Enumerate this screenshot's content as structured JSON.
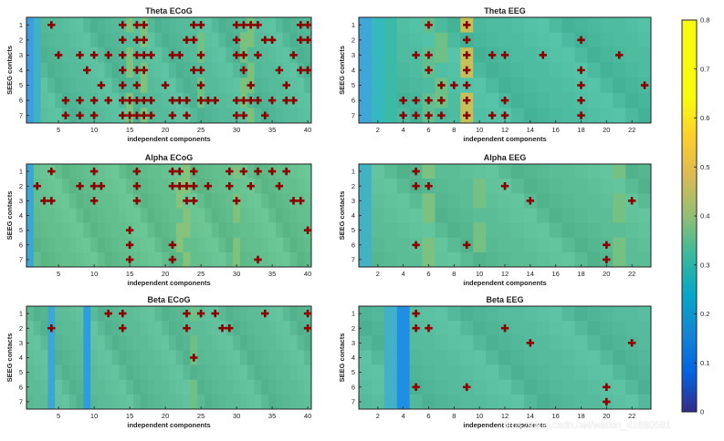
{
  "watermark": "https://blog.csdn.net/weixin_41880581",
  "colorbar": {
    "min": 0,
    "max": 0.8,
    "ticks": [
      "0",
      "0.1",
      "0.2",
      "0.3",
      "0.4",
      "0.5",
      "0.6",
      "0.7",
      "0.8"
    ]
  },
  "chart_data": [
    {
      "type": "heatmap",
      "title": "Theta ECoG",
      "xlabel": "independent components",
      "ylabel": "SEEG contacts",
      "n_cols": 40,
      "n_rows": 7,
      "x_ticks": [
        5,
        10,
        15,
        20,
        25,
        30,
        35,
        40
      ],
      "y_ticks": [
        1,
        2,
        3,
        4,
        5,
        6,
        7
      ],
      "marker": "+",
      "markers": [
        [
          4,
          1
        ],
        [
          14,
          1
        ],
        [
          16,
          1
        ],
        [
          17,
          1
        ],
        [
          24,
          1
        ],
        [
          25,
          1
        ],
        [
          30,
          1
        ],
        [
          31,
          1
        ],
        [
          32,
          1
        ],
        [
          33,
          1
        ],
        [
          39,
          1
        ],
        [
          40,
          1
        ],
        [
          14,
          2
        ],
        [
          16,
          2
        ],
        [
          17,
          2
        ],
        [
          23,
          2
        ],
        [
          24,
          2
        ],
        [
          30,
          2
        ],
        [
          34,
          2
        ],
        [
          35,
          2
        ],
        [
          39,
          2
        ],
        [
          40,
          2
        ],
        [
          5,
          3
        ],
        [
          8,
          3
        ],
        [
          10,
          3
        ],
        [
          12,
          3
        ],
        [
          14,
          3
        ],
        [
          16,
          3
        ],
        [
          17,
          3
        ],
        [
          18,
          3
        ],
        [
          21,
          3
        ],
        [
          22,
          3
        ],
        [
          25,
          3
        ],
        [
          30,
          3
        ],
        [
          31,
          3
        ],
        [
          33,
          3
        ],
        [
          38,
          3
        ],
        [
          9,
          4
        ],
        [
          14,
          4
        ],
        [
          16,
          4
        ],
        [
          17,
          4
        ],
        [
          24,
          4
        ],
        [
          25,
          4
        ],
        [
          31,
          4
        ],
        [
          36,
          4
        ],
        [
          39,
          4
        ],
        [
          40,
          4
        ],
        [
          11,
          5
        ],
        [
          14,
          5
        ],
        [
          16,
          5
        ],
        [
          20,
          5
        ],
        [
          25,
          5
        ],
        [
          32,
          5
        ],
        [
          37,
          5
        ],
        [
          6,
          6
        ],
        [
          8,
          6
        ],
        [
          10,
          6
        ],
        [
          12,
          6
        ],
        [
          14,
          6
        ],
        [
          15,
          6
        ],
        [
          16,
          6
        ],
        [
          17,
          6
        ],
        [
          18,
          6
        ],
        [
          21,
          6
        ],
        [
          22,
          6
        ],
        [
          23,
          6
        ],
        [
          25,
          6
        ],
        [
          26,
          6
        ],
        [
          27,
          6
        ],
        [
          30,
          6
        ],
        [
          31,
          6
        ],
        [
          32,
          6
        ],
        [
          33,
          6
        ],
        [
          35,
          6
        ],
        [
          37,
          6
        ],
        [
          38,
          6
        ],
        [
          6,
          7
        ],
        [
          8,
          7
        ],
        [
          10,
          7
        ],
        [
          14,
          7
        ],
        [
          15,
          7
        ],
        [
          16,
          7
        ],
        [
          17,
          7
        ],
        [
          18,
          7
        ],
        [
          21,
          7
        ],
        [
          23,
          7
        ],
        [
          30,
          7
        ],
        [
          31,
          7
        ],
        [
          34,
          7
        ]
      ]
    },
    {
      "type": "heatmap",
      "title": "Theta EEG",
      "xlabel": "independent components",
      "ylabel": "SEEG contacts",
      "n_cols": 23,
      "n_rows": 7,
      "x_ticks": [
        2,
        4,
        6,
        8,
        10,
        12,
        14,
        16,
        18,
        20,
        22
      ],
      "y_ticks": [
        1,
        2,
        3,
        4,
        5,
        6,
        7
      ],
      "marker": "+",
      "markers": [
        [
          6,
          1
        ],
        [
          9,
          1
        ],
        [
          9,
          2
        ],
        [
          18,
          2
        ],
        [
          5,
          3
        ],
        [
          6,
          3
        ],
        [
          9,
          3
        ],
        [
          11,
          3
        ],
        [
          12,
          3
        ],
        [
          15,
          3
        ],
        [
          21,
          3
        ],
        [
          6,
          4
        ],
        [
          9,
          4
        ],
        [
          18,
          4
        ],
        [
          7,
          5
        ],
        [
          8,
          5
        ],
        [
          9,
          5
        ],
        [
          18,
          5
        ],
        [
          23,
          5
        ],
        [
          4,
          6
        ],
        [
          5,
          6
        ],
        [
          6,
          6
        ],
        [
          7,
          6
        ],
        [
          9,
          6
        ],
        [
          12,
          6
        ],
        [
          18,
          6
        ],
        [
          4,
          7
        ],
        [
          5,
          7
        ],
        [
          6,
          7
        ],
        [
          7,
          7
        ],
        [
          9,
          7
        ],
        [
          11,
          7
        ],
        [
          12,
          7
        ],
        [
          18,
          7
        ]
      ]
    },
    {
      "type": "heatmap",
      "title": "Alpha ECoG",
      "xlabel": "independent components",
      "ylabel": "SEEG contacts",
      "n_cols": 40,
      "n_rows": 7,
      "x_ticks": [
        5,
        10,
        15,
        20,
        25,
        30,
        35,
        40
      ],
      "y_ticks": [
        1,
        2,
        3,
        4,
        5,
        6,
        7
      ],
      "marker": "+",
      "markers": [
        [
          4,
          1
        ],
        [
          10,
          1
        ],
        [
          16,
          1
        ],
        [
          21,
          1
        ],
        [
          22,
          1
        ],
        [
          24,
          1
        ],
        [
          29,
          1
        ],
        [
          31,
          1
        ],
        [
          33,
          1
        ],
        [
          35,
          1
        ],
        [
          37,
          1
        ],
        [
          2,
          2
        ],
        [
          8,
          2
        ],
        [
          10,
          2
        ],
        [
          11,
          2
        ],
        [
          16,
          2
        ],
        [
          21,
          2
        ],
        [
          22,
          2
        ],
        [
          23,
          2
        ],
        [
          24,
          2
        ],
        [
          26,
          2
        ],
        [
          29,
          2
        ],
        [
          32,
          2
        ],
        [
          36,
          2
        ],
        [
          3,
          3
        ],
        [
          4,
          3
        ],
        [
          10,
          3
        ],
        [
          16,
          3
        ],
        [
          23,
          3
        ],
        [
          24,
          3
        ],
        [
          30,
          3
        ],
        [
          38,
          3
        ],
        [
          39,
          3
        ],
        [
          40,
          5
        ],
        [
          15,
          5
        ],
        [
          15,
          6
        ],
        [
          21,
          6
        ],
        [
          15,
          7
        ],
        [
          21,
          7
        ],
        [
          33,
          7
        ]
      ]
    },
    {
      "type": "heatmap",
      "title": "Alpha EEG",
      "xlabel": "independent components",
      "ylabel": "SEEG contacts",
      "n_cols": 23,
      "n_rows": 7,
      "x_ticks": [
        2,
        4,
        6,
        8,
        10,
        12,
        14,
        16,
        18,
        20,
        22
      ],
      "y_ticks": [
        1,
        2,
        3,
        4,
        5,
        6,
        7
      ],
      "marker": "+",
      "markers": [
        [
          5,
          1
        ],
        [
          5,
          2
        ],
        [
          6,
          2
        ],
        [
          12,
          2
        ],
        [
          14,
          3
        ],
        [
          22,
          3
        ],
        [
          5,
          6
        ],
        [
          9,
          6
        ],
        [
          20,
          6
        ],
        [
          20,
          7
        ]
      ]
    },
    {
      "type": "heatmap",
      "title": "Beta ECoG",
      "xlabel": "independent components",
      "ylabel": "SEEG contacts",
      "n_cols": 40,
      "n_rows": 7,
      "x_ticks": [
        5,
        10,
        15,
        20,
        25,
        30,
        35,
        40
      ],
      "y_ticks": [
        1,
        2,
        3,
        4,
        5,
        6,
        7
      ],
      "marker": "+",
      "markers": [
        [
          12,
          1
        ],
        [
          14,
          1
        ],
        [
          23,
          1
        ],
        [
          25,
          1
        ],
        [
          27,
          1
        ],
        [
          34,
          1
        ],
        [
          40,
          1
        ],
        [
          4,
          2
        ],
        [
          14,
          2
        ],
        [
          23,
          2
        ],
        [
          28,
          2
        ],
        [
          29,
          2
        ],
        [
          40,
          2
        ],
        [
          24,
          4
        ]
      ]
    },
    {
      "type": "heatmap",
      "title": "Beta EEG",
      "xlabel": "independent components",
      "ylabel": "SEEG contacts",
      "n_cols": 23,
      "n_rows": 7,
      "x_ticks": [
        2,
        4,
        6,
        8,
        10,
        12,
        14,
        16,
        18,
        20,
        22
      ],
      "y_ticks": [
        1,
        2,
        3,
        4,
        5,
        6,
        7
      ],
      "marker": "+",
      "markers": [
        [
          5,
          1
        ],
        [
          5,
          2
        ],
        [
          6,
          2
        ],
        [
          12,
          2
        ],
        [
          14,
          3
        ],
        [
          22,
          3
        ],
        [
          5,
          6
        ],
        [
          9,
          6
        ],
        [
          20,
          6
        ],
        [
          20,
          7
        ]
      ]
    }
  ]
}
